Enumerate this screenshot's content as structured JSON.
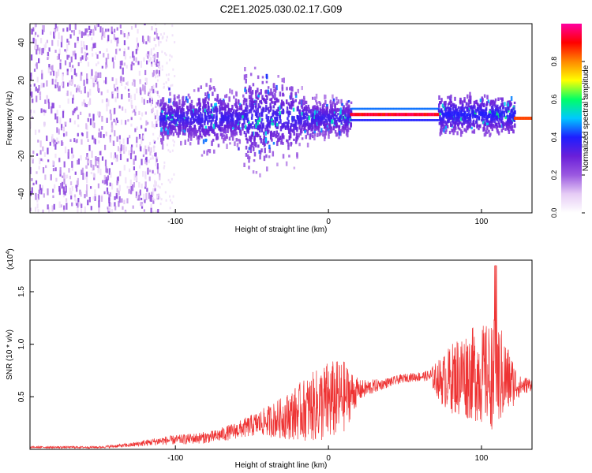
{
  "figure_title": "C2E1.2025.030.02.17.G09",
  "chart_data": [
    {
      "type": "heatmap",
      "title": "",
      "xlabel": "Height of straight line (km)",
      "ylabel": "Frequency (Hz)",
      "xlim": [
        -195,
        133
      ],
      "ylim": [
        -50,
        50
      ],
      "xticks": [
        -100,
        0,
        100
      ],
      "yticks": [
        -40,
        -20,
        0,
        20,
        40
      ],
      "grid": false,
      "colorbar": {
        "label": "Normalized spectral amplitude",
        "range": [
          0,
          1
        ],
        "ticks": [
          0.0,
          0.2,
          0.4,
          0.6,
          0.8
        ],
        "colormap": [
          "#ffffff",
          "#e6ccf5",
          "#9b59e0",
          "#6a1fd9",
          "#1e1eff",
          "#00c8ff",
          "#00ff66",
          "#ffff00",
          "#ff8800",
          "#ff0000",
          "#ff00a0"
        ]
      },
      "features": [
        {
          "x_range": [
            -195,
            -110
          ],
          "freq_spread": [
            -50,
            50
          ],
          "amplitude": 0.15
        },
        {
          "x_range": [
            -110,
            15
          ],
          "freq_spread": [
            -25,
            30
          ],
          "amplitude": 0.25
        },
        {
          "x_range": [
            15,
            72
          ],
          "freq_center": 2,
          "amplitude": 0.9
        },
        {
          "x_range": [
            72,
            122
          ],
          "freq_spread": [
            -8,
            12
          ],
          "amplitude": 0.35
        },
        {
          "x_range": [
            122,
            133
          ],
          "freq_center": 0,
          "amplitude": 0.8
        }
      ]
    },
    {
      "type": "line",
      "title": "",
      "xlabel": "Height of straight line (km)",
      "ylabel": "SNR (10 * v/v)",
      "y_multiplier": "(x10",
      "y_multiplier_exp": "4",
      "y_multiplier_close": ")",
      "xlim": [
        -195,
        133
      ],
      "ylim": [
        0,
        1.8
      ],
      "xticks": [
        -100,
        0,
        100
      ],
      "yticks": [
        0.5,
        1.0,
        1.5
      ],
      "ytick_labels": [
        "0.5",
        "1.0",
        "1.5"
      ],
      "color": "#ee3333",
      "envelope": {
        "x": [
          -195,
          -150,
          -130,
          -110,
          -90,
          -75,
          -60,
          -45,
          -30,
          -15,
          0,
          10,
          20,
          35,
          50,
          65,
          75,
          85,
          95,
          105,
          110,
          115,
          125,
          133
        ],
        "mean": [
          0.02,
          0.02,
          0.04,
          0.08,
          0.1,
          0.12,
          0.18,
          0.25,
          0.3,
          0.38,
          0.45,
          0.5,
          0.56,
          0.62,
          0.68,
          0.7,
          0.65,
          0.7,
          0.72,
          0.7,
          0.72,
          0.68,
          0.6,
          0.62
        ],
        "amp": [
          0.01,
          0.01,
          0.02,
          0.04,
          0.05,
          0.06,
          0.08,
          0.12,
          0.2,
          0.3,
          0.4,
          0.35,
          0.1,
          0.05,
          0.04,
          0.05,
          0.25,
          0.4,
          0.45,
          0.5,
          0.55,
          0.4,
          0.1,
          0.06
        ]
      }
    }
  ]
}
